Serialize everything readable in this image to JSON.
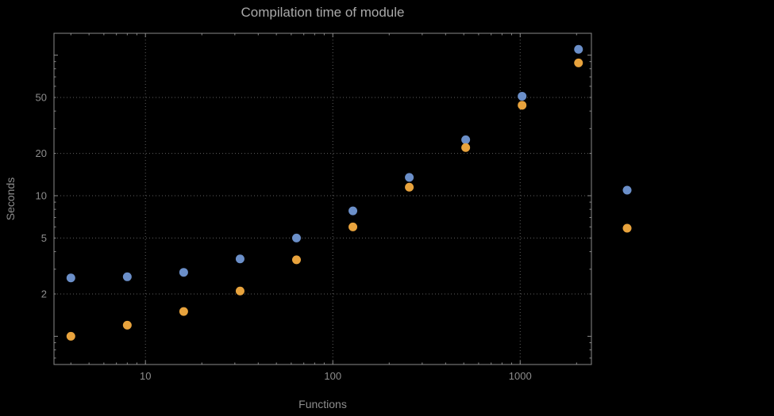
{
  "title": "Compilation time of module",
  "colors": {
    "background": "#000000",
    "title_text": "#a9a9a9",
    "axis_text": "#8d8d8d",
    "grid": "#5e5e5e",
    "frame": "#8a8a8a",
    "series1": "#6b8fc9",
    "series2": "#e8a33d"
  },
  "chart_data": {
    "type": "scatter",
    "title": "Compilation time of module",
    "xlabel": "Functions",
    "ylabel": "Seconds",
    "xscale": "log",
    "yscale": "log",
    "xlim": [
      3.25,
      2400
    ],
    "ylim": [
      0.63,
      143
    ],
    "x_ticks": [
      10,
      100,
      1000
    ],
    "y_ticks": [
      2,
      5,
      10,
      20,
      50
    ],
    "grid": "dotted",
    "legend_position": "right-outside",
    "series": [
      {
        "name": "series-1-blue",
        "color": "#6b8fc9",
        "points": [
          [
            4,
            2.6
          ],
          [
            8,
            2.65
          ],
          [
            16,
            2.85
          ],
          [
            32,
            3.55
          ],
          [
            64,
            5.0
          ],
          [
            128,
            7.8
          ],
          [
            256,
            13.5
          ],
          [
            512,
            25
          ],
          [
            1024,
            51
          ],
          [
            2048,
            110
          ]
        ]
      },
      {
        "name": "series-2-orange",
        "color": "#e8a33d",
        "points": [
          [
            4,
            1.0
          ],
          [
            8,
            1.2
          ],
          [
            16,
            1.5
          ],
          [
            32,
            2.1
          ],
          [
            64,
            3.5
          ],
          [
            128,
            6.0
          ],
          [
            256,
            11.5
          ],
          [
            512,
            22
          ],
          [
            1024,
            44
          ],
          [
            2048,
            88
          ]
        ]
      }
    ]
  },
  "legend": {
    "items": [
      {
        "name": "legend-marker-series-1",
        "color": "#6b8fc9"
      },
      {
        "name": "legend-marker-series-2",
        "color": "#e8a33d"
      }
    ]
  }
}
